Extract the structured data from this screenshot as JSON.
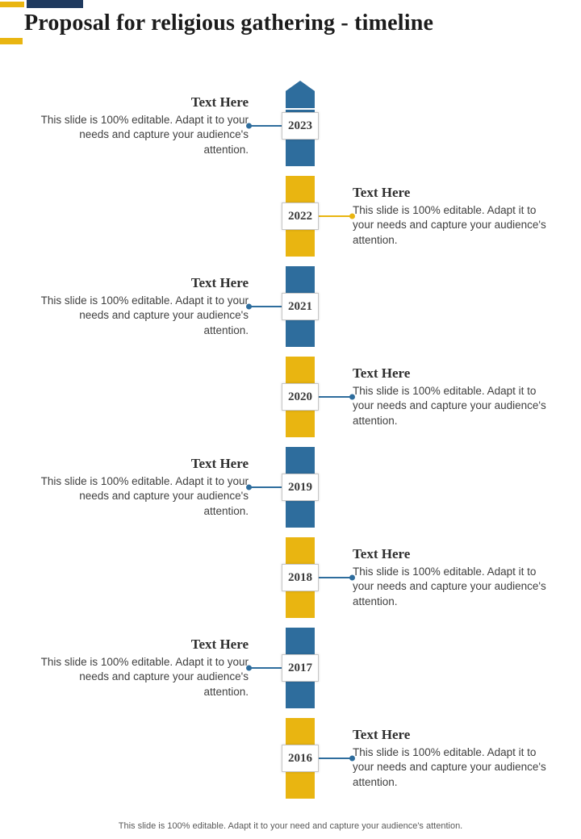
{
  "title": "Proposal for religious gathering - timeline",
  "footer": "This slide is 100% editable. Adapt it to your need and capture your audience's attention.",
  "deco": {
    "yellow": "#E9B511",
    "navy": "#1F3A5F"
  },
  "timeline": {
    "arrow_color": "#2E6D9D",
    "items": [
      {
        "year": "2023",
        "side": "left",
        "heading": "Text Here",
        "body": "This slide is 100% editable. Adapt it to your needs and capture your audience's attention.",
        "color": "#2E6D9D",
        "connector_color": "#2E6D9D"
      },
      {
        "year": "2022",
        "side": "right",
        "heading": "Text Here",
        "body": "This slide is 100% editable. Adapt it to your needs and capture your audience's attention.",
        "color": "#E9B511",
        "connector_color": "#E9B511"
      },
      {
        "year": "2021",
        "side": "left",
        "heading": "Text Here",
        "body": "This slide is 100% editable. Adapt it to your needs and capture your audience's attention.",
        "color": "#2E6D9D",
        "connector_color": "#2E6D9D"
      },
      {
        "year": "2020",
        "side": "right",
        "heading": "Text Here",
        "body": "This slide is 100% editable. Adapt it to your needs and capture your audience's attention.",
        "color": "#E9B511",
        "connector_color": "#2E6D9D"
      },
      {
        "year": "2019",
        "side": "left",
        "heading": "Text Here",
        "body": "This slide is 100% editable. Adapt it to your needs and capture your audience's attention.",
        "color": "#2E6D9D",
        "connector_color": "#2E6D9D"
      },
      {
        "year": "2018",
        "side": "right",
        "heading": "Text Here",
        "body": "This slide is 100% editable. Adapt it to your needs and capture your audience's attention.",
        "color": "#E9B511",
        "connector_color": "#2E6D9D"
      },
      {
        "year": "2017",
        "side": "left",
        "heading": "Text Here",
        "body": "This slide is 100% editable. Adapt it to your needs and capture your audience's attention.",
        "color": "#2E6D9D",
        "connector_color": "#2E6D9D"
      },
      {
        "year": "2016",
        "side": "right",
        "heading": "Text Here",
        "body": "This slide is 100% editable. Adapt it to your needs and capture your audience's attention.",
        "color": "#E9B511",
        "connector_color": "#2E6D9D"
      }
    ]
  }
}
